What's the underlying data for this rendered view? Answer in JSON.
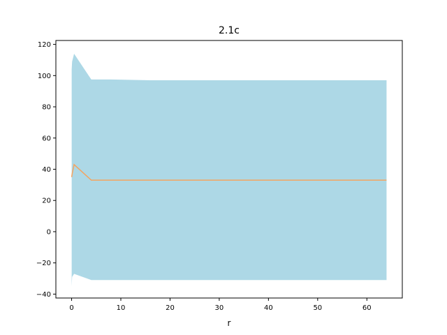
{
  "chart_data": {
    "type": "area",
    "title": "2.1c",
    "xlabel": "r",
    "ylabel": "",
    "xlim": [
      -3.2,
      67.2
    ],
    "ylim": [
      -42.5,
      122.5
    ],
    "xticks": [
      0,
      10,
      20,
      30,
      40,
      50,
      60
    ],
    "yticks": [
      -40,
      -20,
      0,
      20,
      40,
      60,
      80,
      100,
      120
    ],
    "grid": false,
    "legend": "none",
    "colors": {
      "band": "#add8e6",
      "line": "#f4a460",
      "axes": "#000000",
      "background": "#ffffff"
    },
    "series": [
      {
        "kind": "line",
        "x": [
          0.01,
          0.1,
          0.5,
          4,
          8,
          16,
          32,
          64
        ],
        "y": [
          35,
          37,
          43,
          33,
          33,
          33,
          33,
          33
        ]
      },
      {
        "kind": "band",
        "x": [
          0.01,
          0.1,
          0.5,
          4,
          8,
          16,
          32,
          64
        ],
        "y_low": [
          -35,
          -29,
          -27,
          -31,
          -31,
          -31,
          -31,
          -31
        ],
        "y_high": [
          104,
          109,
          114,
          97.5,
          97.5,
          97,
          97,
          97
        ]
      }
    ]
  }
}
